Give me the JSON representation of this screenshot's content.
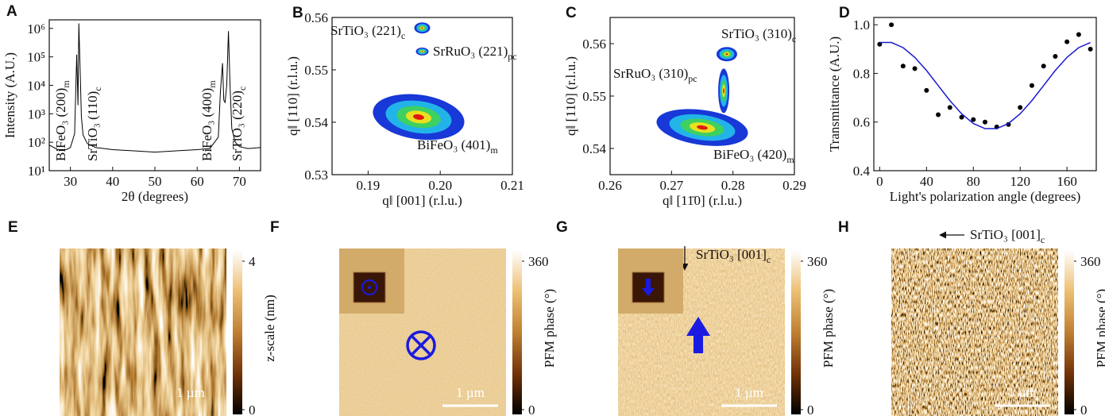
{
  "chart_data": [
    {
      "type": "line",
      "panel": "A",
      "x": [
        25,
        27,
        29,
        30,
        31,
        31.5,
        31.8,
        32,
        32.3,
        32.6,
        33,
        34,
        36,
        40,
        45,
        50,
        55,
        60,
        63,
        65,
        65.5,
        66,
        66.3,
        66.6,
        67,
        67.4,
        67.8,
        68.2,
        69,
        70,
        72,
        75
      ],
      "values": [
        80,
        55,
        55,
        65,
        200,
        120000,
        2000,
        1500000,
        40000,
        800,
        180,
        90,
        65,
        55,
        50,
        45,
        50,
        55,
        60,
        150,
        6000,
        60000,
        3000,
        2500,
        10000,
        800000,
        8000,
        300,
        100,
        70,
        60,
        65
      ],
      "color": "#000000",
      "log_y": true,
      "xlim": [
        25,
        75
      ],
      "xticks": [
        30,
        40,
        50,
        60,
        70
      ],
      "ylim": [
        10,
        2000000
      ],
      "yticks": [
        {
          "value": 10,
          "label": "10¹"
        },
        {
          "value": 100,
          "label": "10²"
        },
        {
          "value": 1000,
          "label": "10³"
        },
        {
          "value": 10000,
          "label": "10⁴"
        },
        {
          "value": 100000,
          "label": "10⁵"
        },
        {
          "value": 1000000,
          "label": "10⁶"
        }
      ],
      "xlabel": "2θ (degrees)",
      "ylabel": "Intensity (A.U.)",
      "annotations": [
        {
          "text": "BiFeO₃ (200)",
          "sub": "m"
        },
        {
          "text": "SrTiO₃ (110)",
          "sub": "c"
        },
        {
          "text": "BiFeO₃ (400)",
          "sub": "m"
        },
        {
          "text": "SrTiO₃ (220)",
          "sub": "c"
        }
      ]
    },
    {
      "type": "map",
      "panel": "B",
      "xlim": [
        0.185,
        0.21
      ],
      "xticks": [
        0.19,
        {
          "value": 0.2,
          "label": "0.20"
        },
        0.21
      ],
      "ylim": [
        0.53,
        0.56
      ],
      "yticks": [
        0.53,
        0.54,
        0.55,
        0.56
      ],
      "xlabel": "q‖ [001] (r.l.u.)",
      "ylabel": "q‖ [110] (r.l.u.)",
      "peaks": [
        {
          "text": "SrTiO₃ (221)",
          "sub": "c",
          "x": 0.1975,
          "y": 0.558
        },
        {
          "text": "SrRuO₃ (221)",
          "sub": "pc",
          "x": 0.1975,
          "y": 0.5535
        },
        {
          "text": "BiFeO₃ (401)",
          "sub": "m",
          "x": 0.197,
          "y": 0.541
        }
      ]
    },
    {
      "type": "map",
      "panel": "C",
      "xlim": [
        0.26,
        0.29
      ],
      "xticks": [
        0.26,
        0.27,
        0.28,
        0.29
      ],
      "ylim": [
        0.535,
        0.565
      ],
      "yticks": [
        0.54,
        0.55,
        0.56
      ],
      "xlabel": "q‖ [11̄0] (r.l.u.)",
      "ylabel": "q‖ [110] (r.l.u.)",
      "peaks": [
        {
          "text": "SrTiO₃ (310)",
          "sub": "c",
          "x": 0.279,
          "y": 0.558
        },
        {
          "text": "SrRuO₃ (310)",
          "sub": "pc",
          "x": 0.2785,
          "y": 0.551
        },
        {
          "text": "BiFeO₃ (420)",
          "sub": "m",
          "x": 0.275,
          "y": 0.544
        }
      ]
    },
    {
      "type": "scatter",
      "panel": "D",
      "x": [
        0,
        10,
        20,
        30,
        40,
        50,
        60,
        70,
        80,
        90,
        100,
        110,
        120,
        130,
        140,
        150,
        160,
        170,
        180
      ],
      "series": [
        {
          "type": "scatter",
          "color": "#000000",
          "values": [
            0.92,
            1.0,
            0.83,
            0.82,
            0.73,
            0.63,
            0.66,
            0.62,
            0.61,
            0.6,
            0.58,
            0.59,
            0.66,
            0.75,
            0.83,
            0.87,
            0.93,
            0.96,
            0.9
          ]
        },
        {
          "type": "line",
          "color": "#1a1ad0",
          "values": [
            0.927,
            0.927,
            0.906,
            0.866,
            0.812,
            0.75,
            0.688,
            0.634,
            0.594,
            0.573,
            0.573,
            0.594,
            0.634,
            0.688,
            0.75,
            0.812,
            0.866,
            0.906,
            0.927
          ]
        }
      ],
      "xlim": [
        -5,
        185
      ],
      "xticks": [
        0,
        40,
        80,
        120,
        160
      ],
      "ylim": [
        0.4,
        1.03
      ],
      "yticks": [
        0.4,
        0.6,
        0.8,
        {
          "value": 1,
          "label": "1.0"
        }
      ],
      "xlabel": "Light's polarization angle (degrees)",
      "ylabel": "Transmittance (A.U.)"
    }
  ],
  "images": [
    {
      "panel": "E",
      "clim": [
        0,
        4
      ],
      "cticks": [
        0,
        4
      ],
      "colorbar_label": "z-scale (nm)",
      "scalebar": "1 µm"
    },
    {
      "panel": "F",
      "clim": [
        0,
        360
      ],
      "cticks": [
        0,
        360
      ],
      "colorbar_label": "PFM phase (°)",
      "scalebar": "1 µm"
    },
    {
      "panel": "G",
      "clim": [
        0,
        360
      ],
      "cticks": [
        0,
        360
      ],
      "colorbar_label": "PFM phase (°)",
      "scalebar": "1 µm",
      "direction": {
        "text": "SrTiO₃ [001]",
        "sub": "c"
      }
    },
    {
      "panel": "H",
      "clim": [
        0,
        360
      ],
      "cticks": [
        0,
        360
      ],
      "colorbar_label": "PFM phase (°)",
      "scalebar": "1 µm",
      "direction": {
        "text": "SrTiO₃ [001]",
        "sub": "c"
      }
    }
  ]
}
